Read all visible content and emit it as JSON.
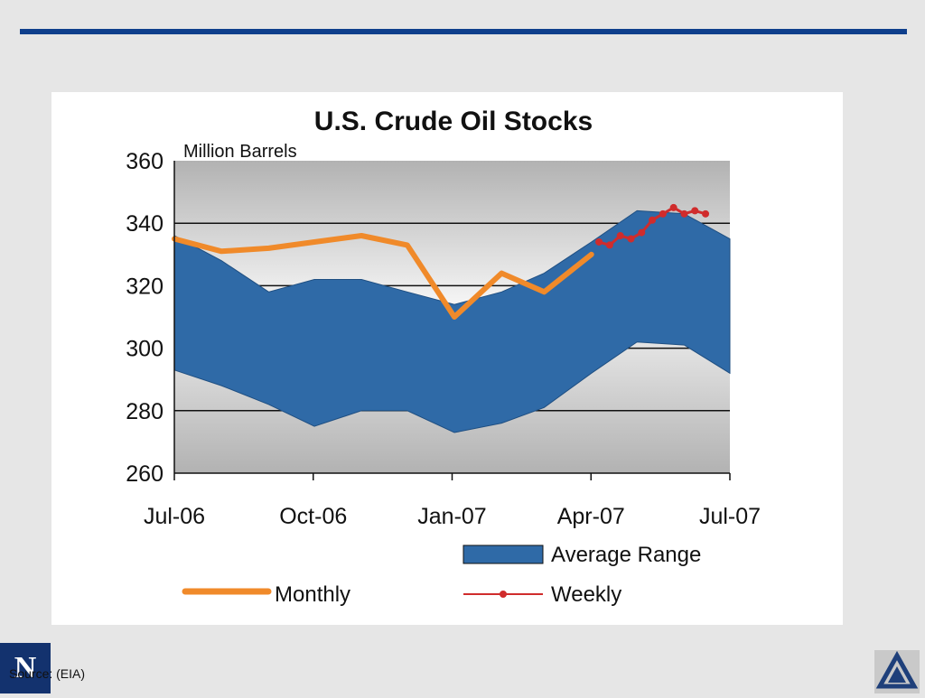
{
  "slide": {
    "source_note": "Source: (EIA)",
    "left_logo_text": "N",
    "left_logo_icon": "university-monogram-icon",
    "right_logo_icon": "triangle-emblem-icon",
    "colors": {
      "rule": "#0f3f8c",
      "range_fill": "#2f6aa7",
      "monthly": "#f08a2a",
      "weekly": "#d02c2c",
      "logo_bg": "#13326e"
    }
  },
  "chart_data": {
    "type": "area",
    "title": "U.S. Crude Oil Stocks",
    "ylabel": "Million Barrels",
    "ylim": [
      260,
      360
    ],
    "yticks": [
      360,
      340,
      320,
      300,
      280,
      260
    ],
    "xlim": [
      "2006-07",
      "2007-07"
    ],
    "xtick_labels": [
      "Jul-06",
      "Oct-06",
      "Jan-07",
      "Apr-07",
      "Jul-07"
    ],
    "grid": "horizontal",
    "legend": "bottom",
    "series": [
      {
        "name": "Average Range",
        "kind": "band",
        "x": [
          "2006-07-01",
          "2006-08-01",
          "2006-09-01",
          "2006-10-01",
          "2006-11-01",
          "2006-12-01",
          "2007-01-01",
          "2007-02-01",
          "2007-03-01",
          "2007-04-01",
          "2007-05-01",
          "2007-06-01",
          "2007-07-01"
        ],
        "upper": [
          336,
          328,
          318,
          322,
          322,
          318,
          314,
          318,
          324,
          334,
          344,
          343,
          335
        ],
        "lower": [
          293,
          288,
          282,
          275,
          280,
          280,
          273,
          276,
          281,
          292,
          302,
          301,
          292
        ]
      },
      {
        "name": "Monthly",
        "kind": "line",
        "x": [
          "2006-07-01",
          "2006-08-01",
          "2006-09-01",
          "2006-10-01",
          "2006-11-01",
          "2006-12-01",
          "2007-01-01",
          "2007-02-01",
          "2007-03-01",
          "2007-04-01"
        ],
        "values": [
          335,
          331,
          332,
          334,
          336,
          333,
          310,
          324,
          318,
          330
        ]
      },
      {
        "name": "Weekly",
        "kind": "line-markers",
        "x": [
          "2007-04-06",
          "2007-04-13",
          "2007-04-20",
          "2007-04-27",
          "2007-05-04",
          "2007-05-11",
          "2007-05-18",
          "2007-05-25",
          "2007-06-01",
          "2007-06-08",
          "2007-06-15"
        ],
        "values": [
          334,
          333,
          336,
          335,
          337,
          341,
          343,
          345,
          343,
          344,
          343
        ]
      }
    ]
  }
}
